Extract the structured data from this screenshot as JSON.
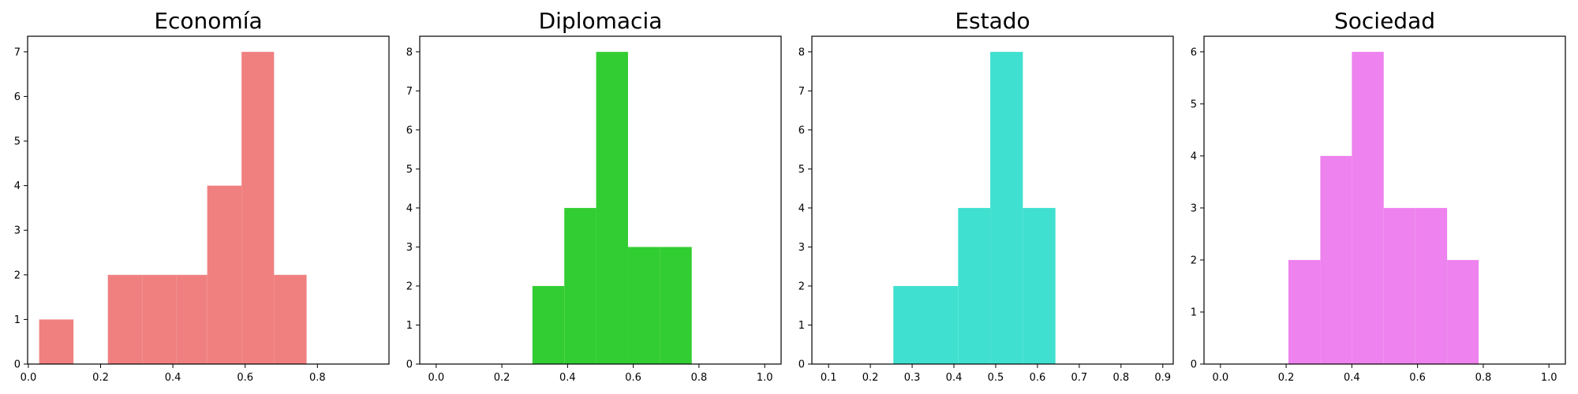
{
  "chart_data": [
    {
      "type": "bar",
      "title": "Economía",
      "color": "#f08080",
      "xlabel": "",
      "ylabel": "",
      "grid": false,
      "xlim": [
        -0.002,
        0.998
      ],
      "ylim": [
        0,
        7.35
      ],
      "xticks": [
        "0.0",
        "0.2",
        "0.4",
        "0.6",
        "0.8"
      ],
      "xtick_values": [
        0.0,
        0.2,
        0.4,
        0.6,
        0.8
      ],
      "yticks": [
        "0",
        "1",
        "2",
        "3",
        "4",
        "5",
        "6",
        "7"
      ],
      "ytick_values": [
        0,
        1,
        2,
        3,
        4,
        5,
        6,
        7
      ],
      "bins": [
        {
          "x0": 0.03,
          "x1": 0.125,
          "count": 1
        },
        {
          "x0": 0.125,
          "x1": 0.22,
          "count": 0
        },
        {
          "x0": 0.22,
          "x1": 0.315,
          "count": 2
        },
        {
          "x0": 0.315,
          "x1": 0.41,
          "count": 2
        },
        {
          "x0": 0.41,
          "x1": 0.495,
          "count": 2
        },
        {
          "x0": 0.495,
          "x1": 0.59,
          "count": 4
        },
        {
          "x0": 0.59,
          "x1": 0.68,
          "count": 7
        },
        {
          "x0": 0.68,
          "x1": 0.77,
          "count": 2
        }
      ]
    },
    {
      "type": "bar",
      "title": "Diplomacia",
      "color": "#32cd32",
      "xlabel": "",
      "ylabel": "",
      "grid": false,
      "xlim": [
        -0.05,
        1.05
      ],
      "ylim": [
        0,
        8.4
      ],
      "xticks": [
        "0.0",
        "0.2",
        "0.4",
        "0.6",
        "0.8",
        "1.0"
      ],
      "xtick_values": [
        0.0,
        0.2,
        0.4,
        0.6,
        0.8,
        1.0
      ],
      "yticks": [
        "0",
        "1",
        "2",
        "3",
        "4",
        "5",
        "6",
        "7",
        "8"
      ],
      "ytick_values": [
        0,
        1,
        2,
        3,
        4,
        5,
        6,
        7,
        8
      ],
      "bins": [
        {
          "x0": 0.293,
          "x1": 0.39,
          "count": 2
        },
        {
          "x0": 0.39,
          "x1": 0.487,
          "count": 4
        },
        {
          "x0": 0.487,
          "x1": 0.584,
          "count": 8
        },
        {
          "x0": 0.584,
          "x1": 0.681,
          "count": 3
        },
        {
          "x0": 0.681,
          "x1": 0.778,
          "count": 3
        }
      ]
    },
    {
      "type": "bar",
      "title": "Estado",
      "color": "#40e0d0",
      "xlabel": "",
      "ylabel": "",
      "grid": false,
      "xlim": [
        0.06,
        0.925
      ],
      "ylim": [
        0,
        8.4
      ],
      "xticks": [
        "0.1",
        "0.2",
        "0.3",
        "0.4",
        "0.5",
        "0.6",
        "0.7",
        "0.8",
        "0.9"
      ],
      "xtick_values": [
        0.1,
        0.2,
        0.3,
        0.4,
        0.5,
        0.6,
        0.7,
        0.8,
        0.9
      ],
      "yticks": [
        "0",
        "1",
        "2",
        "3",
        "4",
        "5",
        "6",
        "7",
        "8"
      ],
      "ytick_values": [
        0,
        1,
        2,
        3,
        4,
        5,
        6,
        7,
        8
      ],
      "bins": [
        {
          "x0": 0.255,
          "x1": 0.332,
          "count": 2
        },
        {
          "x0": 0.332,
          "x1": 0.41,
          "count": 2
        },
        {
          "x0": 0.41,
          "x1": 0.487,
          "count": 4
        },
        {
          "x0": 0.487,
          "x1": 0.565,
          "count": 8
        },
        {
          "x0": 0.565,
          "x1": 0.643,
          "count": 4
        }
      ]
    },
    {
      "type": "bar",
      "title": "Sociedad",
      "color": "#ee82ee",
      "xlabel": "",
      "ylabel": "",
      "grid": false,
      "xlim": [
        -0.05,
        1.05
      ],
      "ylim": [
        0,
        6.3
      ],
      "xticks": [
        "0.0",
        "0.2",
        "0.4",
        "0.6",
        "0.8",
        "1.0"
      ],
      "xtick_values": [
        0.0,
        0.2,
        0.4,
        0.6,
        0.8,
        1.0
      ],
      "yticks": [
        "0",
        "1",
        "2",
        "3",
        "4",
        "5",
        "6"
      ],
      "ytick_values": [
        0,
        1,
        2,
        3,
        4,
        5,
        6
      ],
      "bins": [
        {
          "x0": 0.207,
          "x1": 0.304,
          "count": 2
        },
        {
          "x0": 0.304,
          "x1": 0.4,
          "count": 4
        },
        {
          "x0": 0.4,
          "x1": 0.497,
          "count": 6
        },
        {
          "x0": 0.497,
          "x1": 0.593,
          "count": 3
        },
        {
          "x0": 0.593,
          "x1": 0.69,
          "count": 3
        },
        {
          "x0": 0.69,
          "x1": 0.786,
          "count": 2
        }
      ]
    }
  ]
}
